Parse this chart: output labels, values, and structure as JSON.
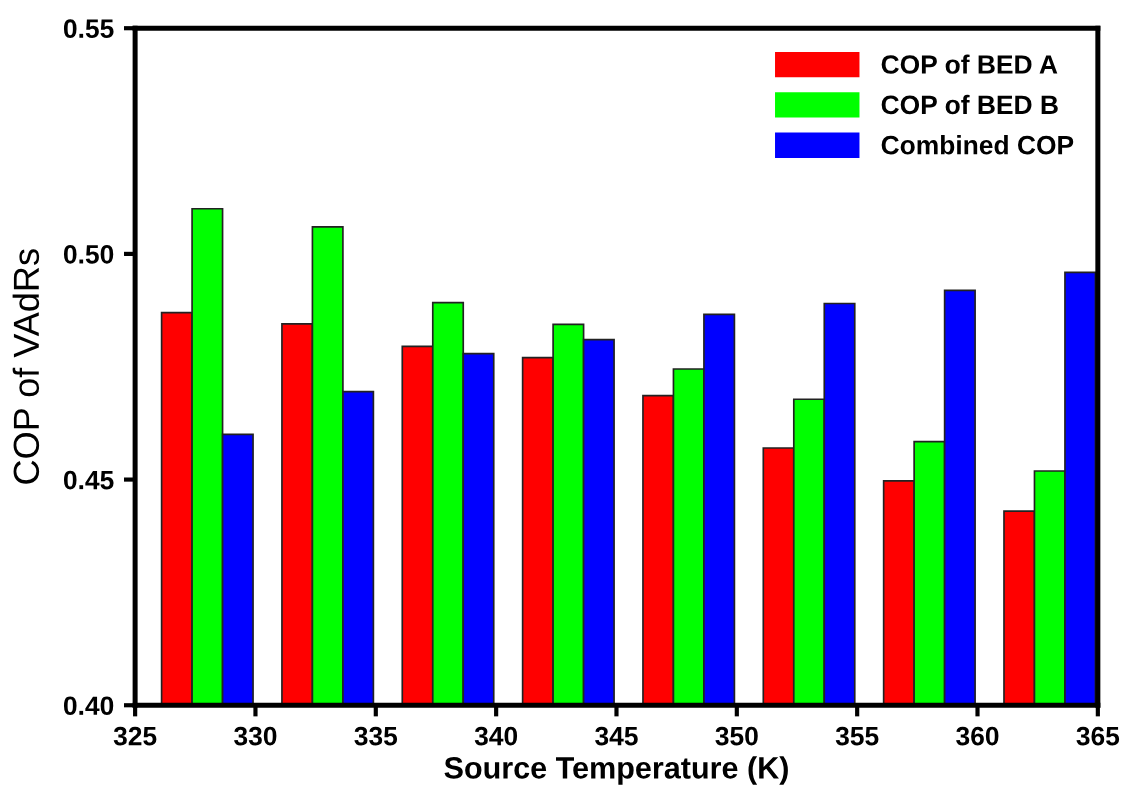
{
  "chart_data": {
    "type": "bar",
    "xlabel": "Source Temperature (K)",
    "ylabel": "COP of VAdRs",
    "x": [
      328,
      333,
      338,
      343,
      348,
      353,
      358,
      363
    ],
    "series": [
      {
        "name": "COP of BED A",
        "color": "#ff0000",
        "values": [
          0.487,
          0.4845,
          0.4795,
          0.477,
          0.4686,
          0.457,
          0.4497,
          0.443
        ]
      },
      {
        "name": "COP of BED B",
        "color": "#00ff00",
        "values": [
          0.51,
          0.506,
          0.4892,
          0.4844,
          0.4745,
          0.4678,
          0.4584,
          0.4519
        ]
      },
      {
        "name": "Combined COP",
        "color": "#0000ff",
        "values": [
          0.46,
          0.4695,
          0.4779,
          0.481,
          0.4866,
          0.489,
          0.4919,
          0.4959
        ]
      }
    ],
    "xlim": [
      325,
      365
    ],
    "xticks": [
      325,
      330,
      335,
      340,
      345,
      350,
      355,
      360,
      365
    ],
    "ylim": [
      0.4,
      0.55
    ],
    "yticks": [
      {
        "value": 0.4,
        "label": "0.40"
      },
      {
        "value": 0.45,
        "label": "0.45"
      },
      {
        "value": 0.5,
        "label": "0.50"
      },
      {
        "value": 0.55,
        "label": "0.55"
      }
    ],
    "grid": false,
    "legend": "top right"
  }
}
